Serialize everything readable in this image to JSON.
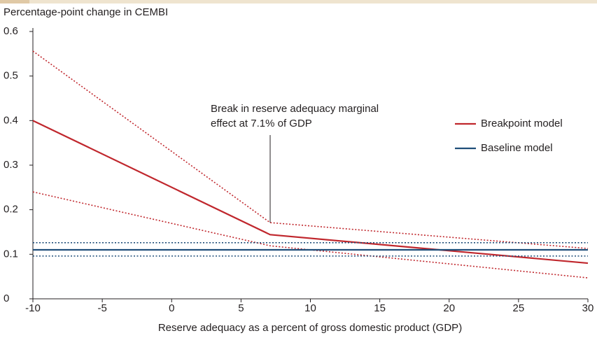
{
  "chart_data": {
    "type": "line",
    "y_label": "Percentage-point change in CEMBI",
    "x_label": "Reserve adequacy as a percent of gross domestic product (GDP)",
    "annotation": [
      "Break in reserve adequacy marginal",
      "effect at 7.1% of GDP"
    ],
    "x": [
      -10,
      7.1,
      30
    ],
    "series": [
      {
        "name": "Breakpoint model",
        "color": "#c0272d",
        "dash": "solid",
        "values": [
          0.4,
          0.144,
          0.08
        ]
      },
      {
        "color": "#c0272d",
        "dash": "dotted",
        "values": [
          0.556,
          0.171,
          0.113
        ]
      },
      {
        "color": "#c0272d",
        "dash": "dotted",
        "values": [
          0.24,
          0.119,
          0.047
        ]
      },
      {
        "name": "Baseline model",
        "color": "#1f4e79",
        "dash": "solid",
        "values": [
          0.11,
          0.11,
          0.11
        ]
      },
      {
        "color": "#1f4e79",
        "dash": "dotted",
        "values": [
          0.126,
          0.126,
          0.126
        ]
      },
      {
        "color": "#1f4e79",
        "dash": "dotted",
        "values": [
          0.096,
          0.096,
          0.096
        ]
      }
    ],
    "xlim": [
      -10,
      30
    ],
    "xticks": [
      -10,
      -5,
      0,
      5,
      10,
      15,
      20,
      25,
      30
    ],
    "ylim": [
      0,
      0.6
    ],
    "yticks": [
      0,
      0.1,
      0.2,
      0.3,
      0.4,
      0.5,
      0.6
    ],
    "legend": "right"
  }
}
